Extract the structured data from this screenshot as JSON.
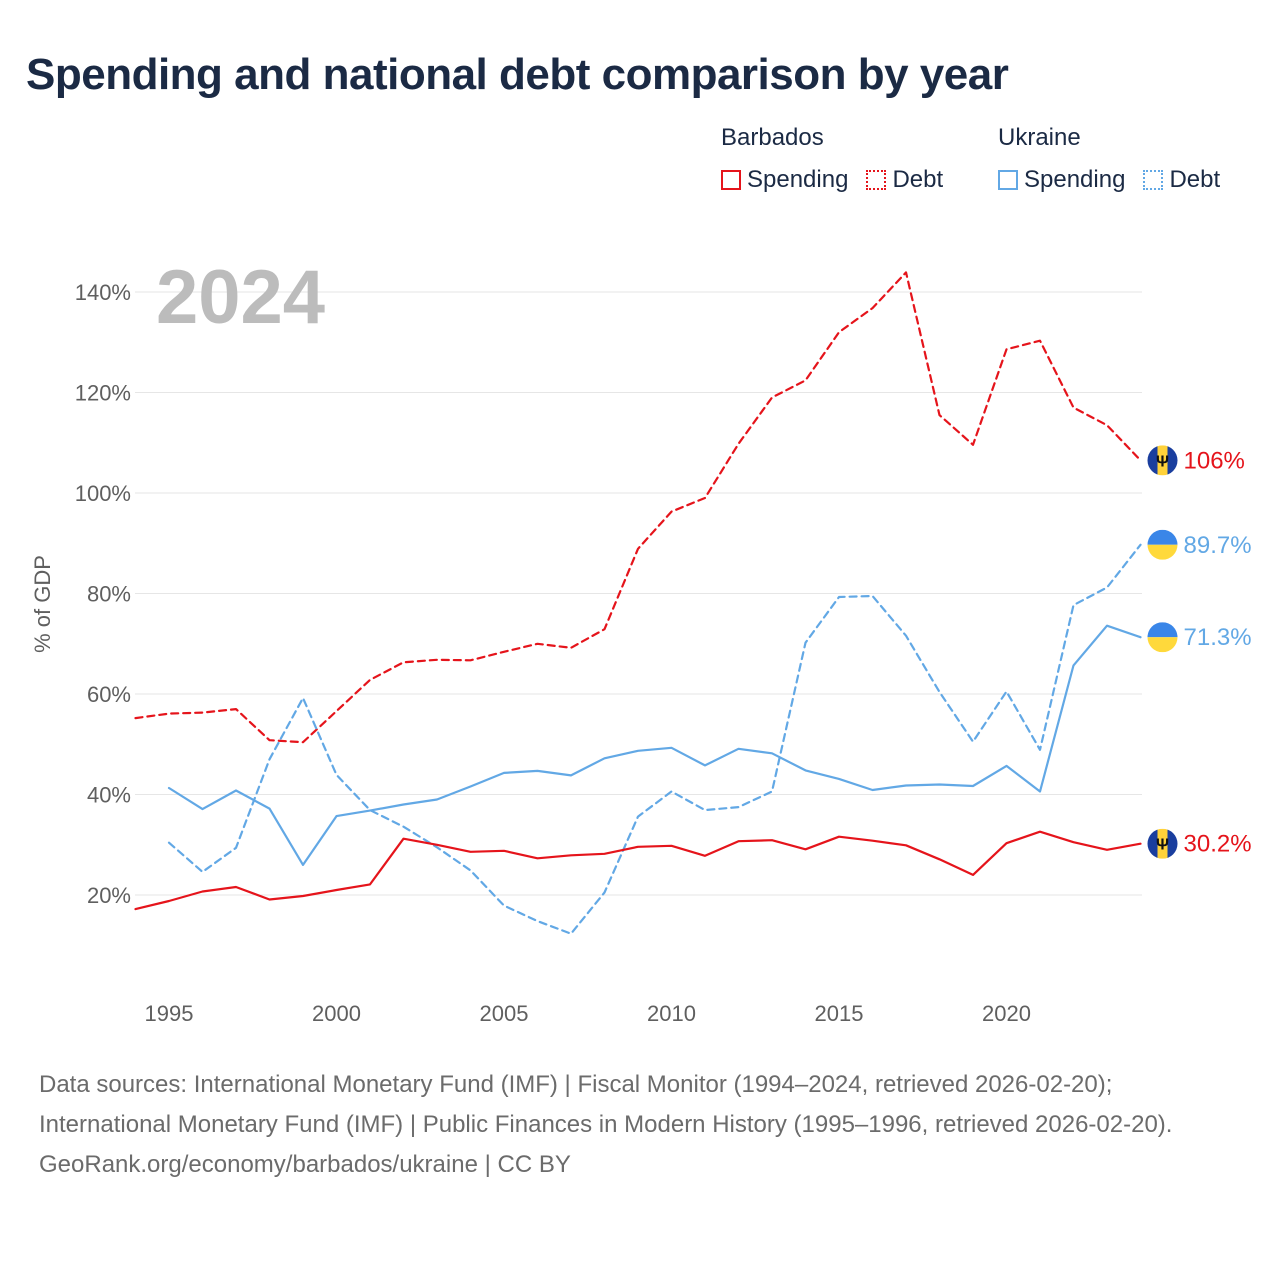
{
  "title": "Spending and national debt comparison by year",
  "legend": {
    "groups": [
      {
        "name": "Barbados",
        "color": "#e5141b",
        "items": [
          {
            "label": "Spending",
            "style": "solid"
          },
          {
            "label": "Debt",
            "style": "dotted"
          }
        ]
      },
      {
        "name": "Ukraine",
        "color": "#62a8e5",
        "items": [
          {
            "label": "Spending",
            "style": "solid"
          },
          {
            "label": "Debt",
            "style": "dotted"
          }
        ]
      }
    ]
  },
  "sources": {
    "line1": "Data sources: International Monetary Fund (IMF) | Fiscal Monitor (1994–2024, retrieved 2026-02-20);",
    "line2": "International Monetary Fund (IMF) | Public Finances in Modern History (1995–1996, retrieved 2026-02-20).",
    "line3": "GeoRank.org/economy/barbados/ukraine | CC BY"
  },
  "chart_data": {
    "type": "line",
    "title": "Spending and national debt comparison by year",
    "year_watermark": "2024",
    "xlabel": "",
    "ylabel": "% of GDP",
    "xlim": [
      1994,
      2024
    ],
    "ylim": [
      7,
      148
    ],
    "x_ticks": [
      1995,
      2000,
      2005,
      2010,
      2015,
      2020
    ],
    "y_ticks": [
      20,
      40,
      60,
      80,
      100,
      120,
      140
    ],
    "y_tick_format": "%",
    "grid": true,
    "series": [
      {
        "name": "Barbados Debt",
        "country": "Barbados",
        "metric": "Debt",
        "color": "#e5141b",
        "dash": "dashed",
        "end_label": "106%",
        "flag": "barbados",
        "x": [
          1994,
          1995,
          1996,
          1997,
          1998,
          1999,
          2000,
          2001,
          2002,
          2003,
          2004,
          2005,
          2006,
          2007,
          2008,
          2009,
          2010,
          2011,
          2012,
          2013,
          2014,
          2015,
          2016,
          2017,
          2018,
          2019,
          2020,
          2021,
          2022,
          2023,
          2024
        ],
        "y": [
          55.2,
          56.1,
          56.3,
          57.0,
          50.8,
          50.4,
          56.6,
          62.8,
          66.3,
          66.8,
          66.7,
          68.4,
          70.0,
          69.2,
          72.9,
          88.9,
          96.3,
          99.0,
          109.8,
          119.0,
          122.4,
          132.0,
          136.8,
          143.9,
          115.5,
          109.6,
          128.6,
          130.3,
          117.0,
          113.5,
          106.5
        ]
      },
      {
        "name": "Ukraine Debt",
        "country": "Ukraine",
        "metric": "Debt",
        "color": "#62a8e5",
        "dash": "dashed",
        "end_label": "89.7%",
        "flag": "ukraine",
        "x": [
          1995,
          1996,
          1997,
          1998,
          1999,
          2000,
          2001,
          2002,
          2003,
          2004,
          2005,
          2006,
          2007,
          2008,
          2009,
          2010,
          2011,
          2012,
          2013,
          2014,
          2015,
          2016,
          2017,
          2018,
          2019,
          2020,
          2021,
          2022,
          2023,
          2024
        ],
        "y": [
          30.4,
          24.6,
          29.4,
          47.0,
          59.2,
          43.9,
          36.9,
          33.6,
          29.5,
          24.9,
          17.9,
          14.8,
          12.3,
          20.5,
          35.6,
          40.6,
          36.9,
          37.5,
          40.6,
          70.2,
          79.3,
          79.5,
          71.6,
          60.4,
          50.5,
          60.5,
          48.9,
          77.7,
          81.2,
          89.7
        ]
      },
      {
        "name": "Ukraine Spending",
        "country": "Ukraine",
        "metric": "Spending",
        "color": "#62a8e5",
        "dash": "solid",
        "end_label": "71.3%",
        "flag": "ukraine",
        "x": [
          1995,
          1996,
          1997,
          1998,
          1999,
          2000,
          2001,
          2002,
          2003,
          2004,
          2005,
          2006,
          2007,
          2008,
          2009,
          2010,
          2011,
          2012,
          2013,
          2014,
          2015,
          2016,
          2017,
          2018,
          2019,
          2020,
          2021,
          2022,
          2023,
          2024
        ],
        "y": [
          41.3,
          37.1,
          40.8,
          37.2,
          26.0,
          35.7,
          36.8,
          38.0,
          39.0,
          41.6,
          44.3,
          44.7,
          43.8,
          47.2,
          48.7,
          49.3,
          45.8,
          49.1,
          48.2,
          44.8,
          43.1,
          40.9,
          41.8,
          42.0,
          41.7,
          45.7,
          40.6,
          65.7,
          73.6,
          71.3
        ]
      },
      {
        "name": "Barbados Spending",
        "country": "Barbados",
        "metric": "Spending",
        "color": "#e5141b",
        "dash": "solid",
        "end_label": "30.2%",
        "flag": "barbados",
        "x": [
          1994,
          1995,
          1996,
          1997,
          1998,
          1999,
          2000,
          2001,
          2002,
          2003,
          2004,
          2005,
          2006,
          2007,
          2008,
          2009,
          2010,
          2011,
          2012,
          2013,
          2014,
          2015,
          2016,
          2017,
          2018,
          2019,
          2020,
          2021,
          2022,
          2023,
          2024
        ],
        "y": [
          17.2,
          18.8,
          20.7,
          21.6,
          19.1,
          19.8,
          21.0,
          22.1,
          31.2,
          30.0,
          28.6,
          28.8,
          27.3,
          27.9,
          28.2,
          29.6,
          29.8,
          27.8,
          30.7,
          30.9,
          29.1,
          31.6,
          30.8,
          29.9,
          27.1,
          24.0,
          30.3,
          32.6,
          30.5,
          29.0,
          30.2
        ]
      }
    ]
  }
}
